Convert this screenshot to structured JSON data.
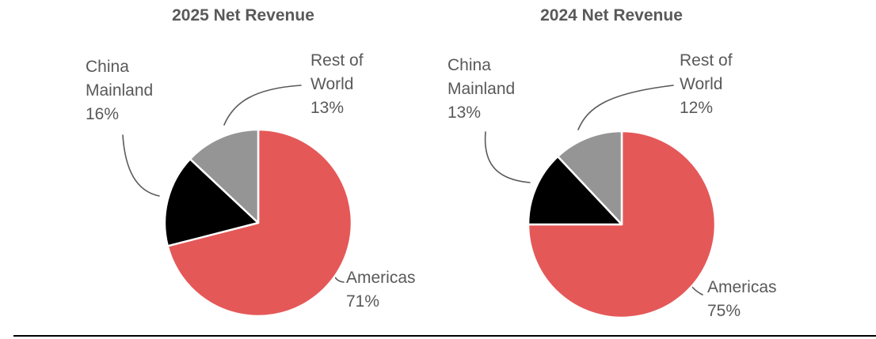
{
  "figure": {
    "background": "#FFFFFF",
    "bottom_rule_color": "#000000"
  },
  "styles": {
    "text_color": "#595959",
    "leader_line_color": "#595959",
    "slice_border_color": "#FFFFFF"
  },
  "chart_data": [
    {
      "type": "pie",
      "title": "2025 Net Revenue",
      "legend": "none",
      "label_style": "outside callout labels with curved leader lines",
      "start_angle": "12 o'clock, clockwise",
      "slices": [
        {
          "label": "Americas",
          "value": 71,
          "display": "71%",
          "color": "#E55858"
        },
        {
          "label": "China Mainland",
          "value": 16,
          "display": "16%",
          "color": "#000000"
        },
        {
          "label": "Rest of World",
          "value": 13,
          "display": "13%",
          "color": "#959595"
        }
      ]
    },
    {
      "type": "pie",
      "title": "2024 Net Revenue",
      "legend": "none",
      "label_style": "outside callout labels with curved leader lines",
      "start_angle": "12 o'clock, clockwise",
      "slices": [
        {
          "label": "Americas",
          "value": 75,
          "display": "75%",
          "color": "#E55858"
        },
        {
          "label": "China Mainland",
          "value": 13,
          "display": "13%",
          "color": "#000000"
        },
        {
          "label": "Rest of World",
          "value": 12,
          "display": "12%",
          "color": "#959595"
        }
      ]
    }
  ]
}
